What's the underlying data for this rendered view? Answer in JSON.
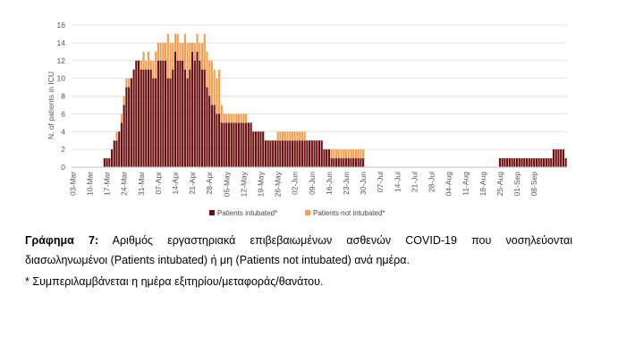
{
  "chart_data": {
    "type": "bar",
    "stacked": true,
    "title": "",
    "xlabel": "",
    "ylabel": "N. of patients in ICU",
    "ylim": [
      0,
      16
    ],
    "yticks": [
      0,
      2,
      4,
      6,
      8,
      10,
      12,
      14,
      16
    ],
    "grid": "horizontal",
    "legend_position": "bottom",
    "start_date": "03-Mar",
    "x_tick_labels": [
      "03-Mar",
      "10-Mar",
      "17-Mar",
      "24-Mar",
      "31-Mar",
      "07-Apr",
      "14-Apr",
      "21-Apr",
      "28-Apr",
      "05-May",
      "12-May",
      "19-May",
      "26-May",
      "02-Jun",
      "09-Jun",
      "16-Jun",
      "23-Jun",
      "30-Jun",
      "07-Jul",
      "14-Jul",
      "21-Jul",
      "28-Jul",
      "04-Aug",
      "11-Aug",
      "18-Aug",
      "25-Aug",
      "01-Sep",
      "08-Sep"
    ],
    "series": [
      {
        "name": "Patients intubated*",
        "color": "#6b0f0f",
        "values": [
          0,
          0,
          0,
          0,
          0,
          0,
          0,
          0,
          0,
          0,
          0,
          0,
          0,
          1,
          1,
          1,
          2,
          3,
          3,
          4,
          5,
          7,
          9,
          9,
          10,
          11,
          12,
          12,
          11,
          11,
          11,
          11,
          11,
          10,
          10,
          12,
          12,
          12,
          12,
          10,
          10,
          11,
          13,
          12,
          12,
          12,
          11,
          10,
          11,
          13,
          12,
          13,
          12,
          11,
          11,
          9,
          8,
          7,
          7,
          6,
          6,
          5,
          5,
          5,
          5,
          5,
          5,
          5,
          5,
          5,
          5,
          5,
          5,
          5,
          4,
          4,
          4,
          4,
          4,
          3,
          3,
          3,
          3,
          3,
          3,
          3,
          3,
          3,
          3,
          3,
          3,
          3,
          3,
          3,
          3,
          3,
          3,
          3,
          3,
          3,
          3,
          3,
          3,
          2,
          2,
          2,
          1,
          1,
          1,
          1,
          1,
          1,
          1,
          1,
          1,
          1,
          1,
          1,
          1,
          1,
          0,
          0,
          0,
          0,
          0,
          0,
          0,
          0,
          0,
          0,
          0,
          0,
          0,
          0,
          0,
          0,
          0,
          0,
          0,
          0,
          0,
          0,
          0,
          0,
          0,
          0,
          0,
          0,
          0,
          0,
          0,
          0,
          0,
          0,
          0,
          0,
          0,
          0,
          0,
          0,
          0,
          0,
          0,
          0,
          0,
          0,
          0,
          0,
          0,
          0,
          0,
          0,
          0,
          0,
          0,
          1,
          1,
          1,
          1,
          1,
          1,
          1,
          1,
          1,
          1,
          1,
          1,
          1,
          1,
          1,
          1,
          1,
          1,
          1,
          1,
          1,
          1,
          2,
          2,
          2,
          2,
          2,
          1
        ]
      },
      {
        "name": "Patients not intubated*",
        "color": "#f0a050",
        "values": [
          0,
          0,
          0,
          0,
          0,
          0,
          0,
          0,
          0,
          0,
          0,
          0,
          0,
          0,
          0,
          0,
          0,
          0,
          1,
          0,
          1,
          1,
          1,
          1,
          0,
          0,
          0,
          0,
          1,
          2,
          1,
          2,
          1,
          2,
          3,
          2,
          2,
          2,
          2,
          5,
          4,
          3,
          2,
          3,
          2,
          2,
          4,
          4,
          3,
          1,
          2,
          2,
          2,
          3,
          4,
          4,
          4,
          5,
          4,
          4,
          5,
          2,
          1,
          1,
          1,
          1,
          1,
          1,
          1,
          1,
          1,
          1,
          0,
          0,
          0,
          0,
          0,
          0,
          0,
          0,
          0,
          0,
          0,
          0,
          1,
          1,
          1,
          1,
          1,
          1,
          1,
          1,
          1,
          1,
          1,
          1,
          0,
          0,
          0,
          0,
          0,
          0,
          0,
          0,
          0,
          0,
          1,
          1,
          1,
          1,
          1,
          1,
          1,
          1,
          1,
          1,
          1,
          1,
          1,
          1,
          0,
          0,
          0,
          0,
          0,
          0,
          0,
          0,
          0,
          0,
          0,
          0,
          0,
          0,
          0,
          0,
          0,
          0,
          0,
          0,
          0,
          0,
          0,
          0,
          0,
          0,
          0,
          0,
          0,
          0,
          0,
          0,
          0,
          0,
          0,
          0,
          0,
          0,
          0,
          0,
          0,
          0,
          0,
          0,
          0,
          0,
          0,
          0,
          0,
          0,
          0,
          0,
          0,
          0,
          0,
          0,
          0,
          0,
          0,
          0,
          0,
          0,
          0,
          0,
          0,
          0,
          0,
          0,
          0,
          0,
          0,
          0,
          0,
          0,
          0,
          0,
          0,
          0,
          0,
          0,
          0
        ]
      }
    ]
  },
  "caption": {
    "line1_label": "Γράφημα 7:",
    "line1_text": " Αριθμός εργαστηριακά επιβεβαιωμένων ασθενών COVID-19 που νοσηλεύονται",
    "line2": "διασωληνωμένοι (Patients intubated) ή μη (Patients not intubated) ανά ημέρα.",
    "line3": "* Συμπεριλαμβάνεται η ημέρα εξιτηρίου/μεταφοράς/θανάτου."
  }
}
